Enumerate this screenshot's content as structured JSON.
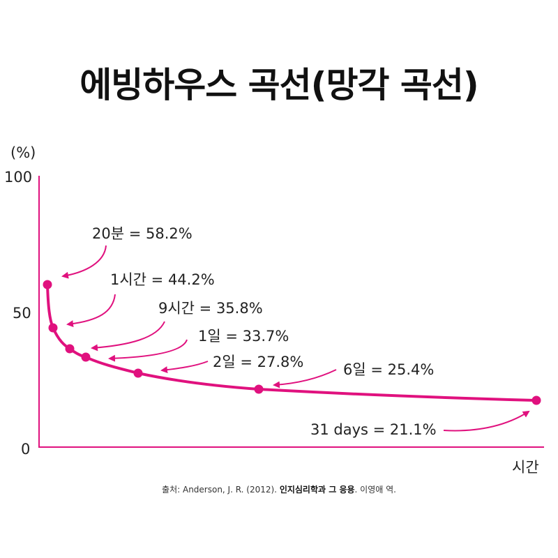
{
  "title": "에빙하우스 곡선(망각 곡선)",
  "source": {
    "prefix": "출처: Anderson, J. R. (2012). ",
    "book": "인지심리학과 그 응용",
    "suffix": ". 이영애 역."
  },
  "colors": {
    "curve": "#e0117e",
    "axis": "#e0117e",
    "text": "#222222"
  },
  "chart_data": {
    "type": "line",
    "title": "에빙하우스 곡선(망각 곡선)",
    "ylabel": "(%)",
    "xlabel": "시간",
    "ylim": [
      0,
      100
    ],
    "yticks": [
      "100",
      "50",
      "0"
    ],
    "points": [
      {
        "label": "20분 = 58.2%",
        "y": 58.2
      },
      {
        "label": "1시간 = 44.2%",
        "y": 44.2
      },
      {
        "label": "9시간 = 35.8%",
        "y": 35.8
      },
      {
        "label": "1일 = 33.7%",
        "y": 33.7
      },
      {
        "label": "2일 = 27.8%",
        "y": 27.8
      },
      {
        "label": "6일 = 25.4%",
        "y": 25.4
      },
      {
        "label": "31 days = 21.1%",
        "y": 21.1
      }
    ]
  }
}
